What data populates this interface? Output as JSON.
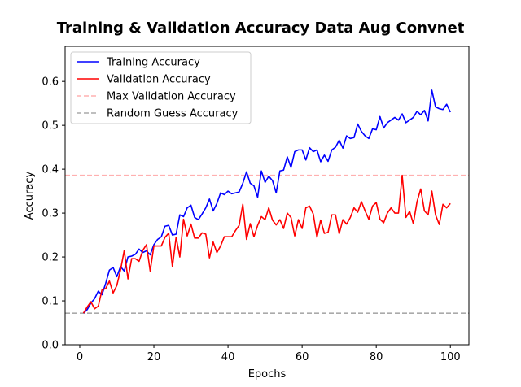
{
  "chart_data": {
    "type": "line",
    "title": "Training & Validation Accuracy Data Aug Convnet",
    "xlabel": "Epochs",
    "ylabel": "Accuracy",
    "xlim": [
      -3.95,
      105
    ],
    "ylim": [
      0.0,
      0.68
    ],
    "xticks": [
      0,
      20,
      40,
      60,
      80,
      100
    ],
    "yticks": [
      0.0,
      0.1,
      0.2,
      0.3,
      0.4,
      0.5,
      0.6
    ],
    "ytick_labels": [
      "0.0",
      "0.1",
      "0.2",
      "0.3",
      "0.4",
      "0.5",
      "0.6"
    ],
    "legend_position": "upper-left",
    "series": [
      {
        "name": "Training Accuracy",
        "color": "#0000ff",
        "style": "solid",
        "x": [
          1,
          2,
          3,
          4,
          5,
          6,
          7,
          8,
          9,
          10,
          11,
          12,
          13,
          14,
          15,
          16,
          17,
          18,
          19,
          20,
          21,
          22,
          23,
          24,
          25,
          26,
          27,
          28,
          29,
          30,
          31,
          32,
          33,
          34,
          35,
          36,
          37,
          38,
          39,
          40,
          41,
          42,
          43,
          44,
          45,
          46,
          47,
          48,
          49,
          50,
          51,
          52,
          53,
          54,
          55,
          56,
          57,
          58,
          59,
          60,
          61,
          62,
          63,
          64,
          65,
          66,
          67,
          68,
          69,
          70,
          71,
          72,
          73,
          74,
          75,
          76,
          77,
          78,
          79,
          80,
          81,
          82,
          83,
          84,
          85,
          86,
          87,
          88,
          89,
          90,
          91,
          92,
          93,
          94,
          95,
          96,
          97,
          98,
          99,
          100
        ],
        "values": [
          0.072,
          0.08,
          0.095,
          0.105,
          0.122,
          0.114,
          0.14,
          0.17,
          0.176,
          0.155,
          0.178,
          0.168,
          0.2,
          0.202,
          0.206,
          0.218,
          0.21,
          0.214,
          0.205,
          0.228,
          0.24,
          0.246,
          0.27,
          0.272,
          0.25,
          0.252,
          0.296,
          0.292,
          0.312,
          0.318,
          0.29,
          0.285,
          0.298,
          0.312,
          0.332,
          0.305,
          0.322,
          0.346,
          0.342,
          0.35,
          0.344,
          0.346,
          0.348,
          0.368,
          0.394,
          0.368,
          0.362,
          0.336,
          0.396,
          0.37,
          0.384,
          0.374,
          0.346,
          0.396,
          0.398,
          0.428,
          0.404,
          0.44,
          0.444,
          0.444,
          0.421,
          0.449,
          0.44,
          0.444,
          0.417,
          0.432,
          0.418,
          0.444,
          0.45,
          0.466,
          0.448,
          0.476,
          0.47,
          0.472,
          0.503,
          0.486,
          0.476,
          0.47,
          0.492,
          0.49,
          0.52,
          0.494,
          0.506,
          0.512,
          0.518,
          0.512,
          0.526,
          0.506,
          0.512,
          0.518,
          0.532,
          0.524,
          0.534,
          0.51,
          0.58,
          0.542,
          0.538,
          0.536,
          0.548,
          0.53
        ]
      },
      {
        "name": "Validation Accuracy",
        "color": "#ff0000",
        "style": "solid",
        "x": [
          1,
          2,
          3,
          4,
          5,
          6,
          7,
          8,
          9,
          10,
          11,
          12,
          13,
          14,
          15,
          16,
          17,
          18,
          19,
          20,
          21,
          22,
          23,
          24,
          25,
          26,
          27,
          28,
          29,
          30,
          31,
          32,
          33,
          34,
          35,
          36,
          37,
          38,
          39,
          40,
          41,
          42,
          43,
          44,
          45,
          46,
          47,
          48,
          49,
          50,
          51,
          52,
          53,
          54,
          55,
          56,
          57,
          58,
          59,
          60,
          61,
          62,
          63,
          64,
          65,
          66,
          67,
          68,
          69,
          70,
          71,
          72,
          73,
          74,
          75,
          76,
          77,
          78,
          79,
          80,
          81,
          82,
          83,
          84,
          85,
          86,
          87,
          88,
          89,
          90,
          91,
          92,
          93,
          94,
          95,
          96,
          97,
          98,
          99,
          100
        ],
        "values": [
          0.072,
          0.086,
          0.098,
          0.082,
          0.088,
          0.125,
          0.128,
          0.145,
          0.118,
          0.135,
          0.17,
          0.215,
          0.15,
          0.196,
          0.196,
          0.19,
          0.215,
          0.228,
          0.168,
          0.225,
          0.225,
          0.225,
          0.245,
          0.254,
          0.178,
          0.245,
          0.2,
          0.286,
          0.248,
          0.275,
          0.243,
          0.243,
          0.255,
          0.252,
          0.198,
          0.234,
          0.21,
          0.225,
          0.246,
          0.246,
          0.246,
          0.26,
          0.272,
          0.32,
          0.24,
          0.276,
          0.246,
          0.272,
          0.292,
          0.285,
          0.312,
          0.284,
          0.273,
          0.285,
          0.265,
          0.3,
          0.29,
          0.248,
          0.285,
          0.265,
          0.312,
          0.316,
          0.298,
          0.245,
          0.284,
          0.254,
          0.256,
          0.296,
          0.296,
          0.253,
          0.285,
          0.275,
          0.29,
          0.312,
          0.302,
          0.326,
          0.305,
          0.286,
          0.316,
          0.324,
          0.286,
          0.278,
          0.3,
          0.312,
          0.3,
          0.3,
          0.386,
          0.29,
          0.304,
          0.276,
          0.326,
          0.355,
          0.305,
          0.296,
          0.35,
          0.296,
          0.274,
          0.32,
          0.312,
          0.322
        ]
      },
      {
        "name": "Max Validation Accuracy",
        "color": "#ffb0b0",
        "style": "dashed",
        "y": 0.386
      },
      {
        "name": "Random Guess Accuracy",
        "color": "#aaaaaa",
        "style": "dashed",
        "y": 0.072
      }
    ]
  }
}
